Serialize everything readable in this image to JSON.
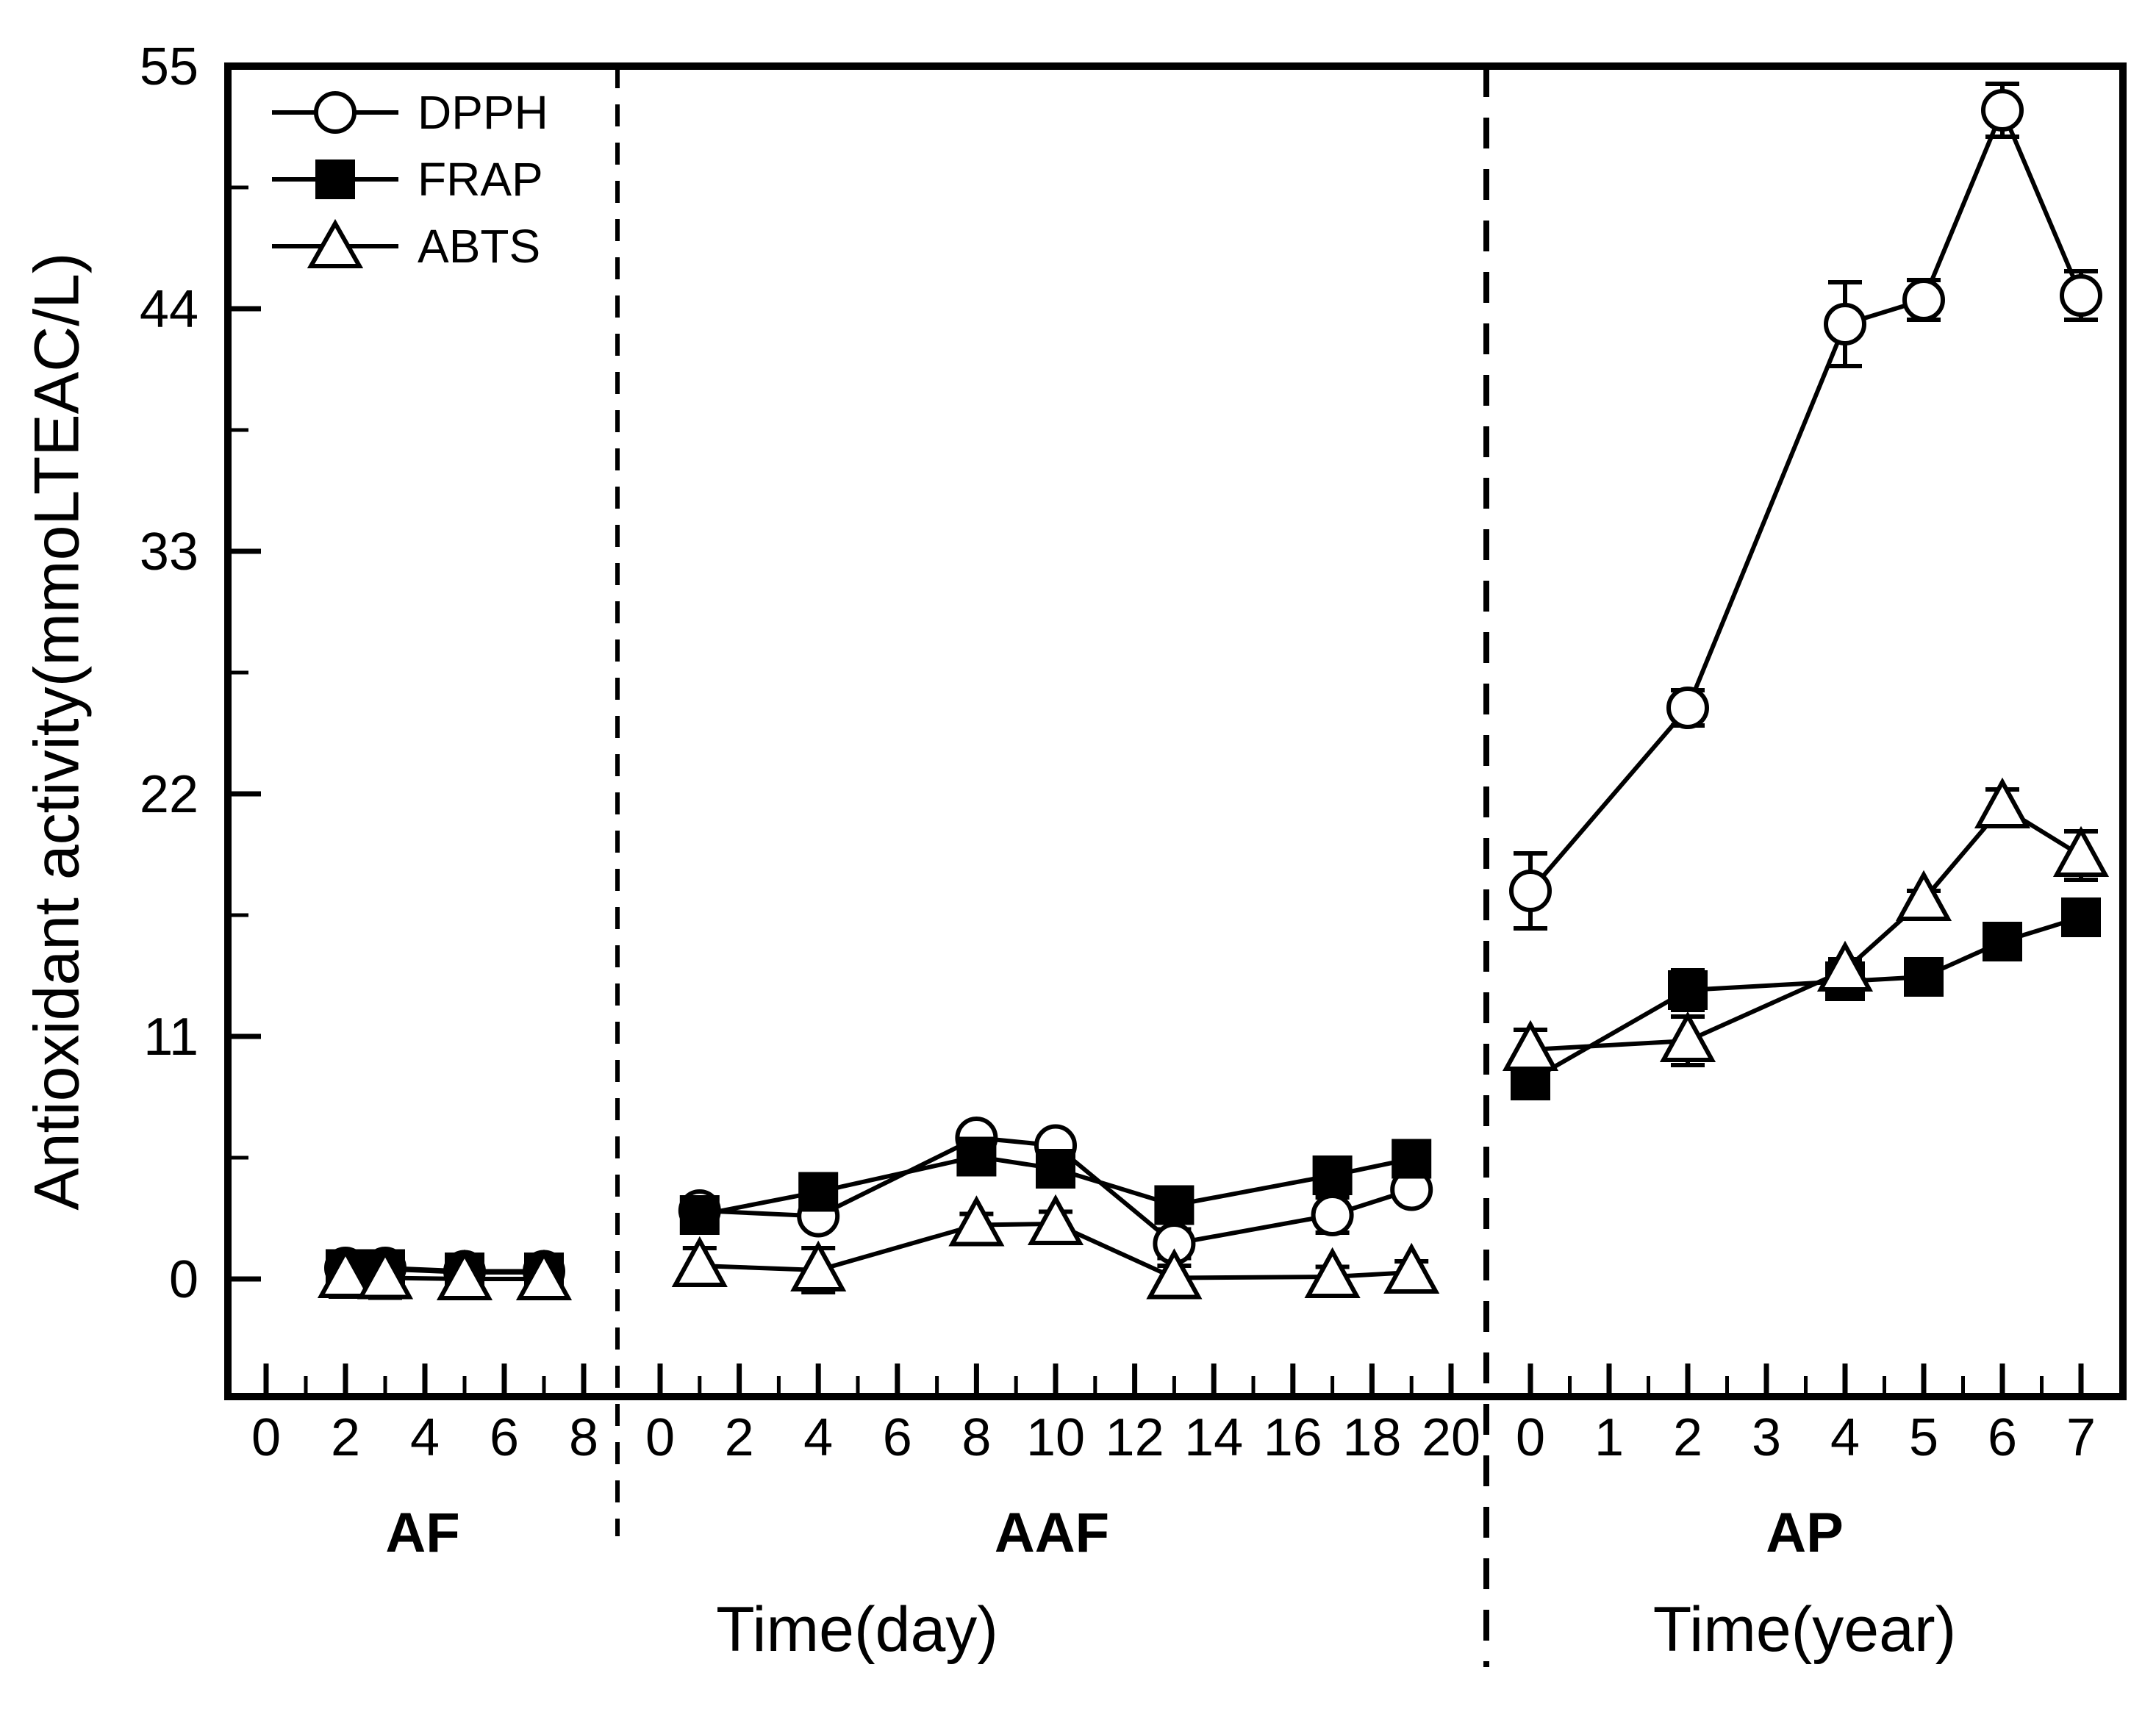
{
  "figure": {
    "y_axis_title": "Antioxidant activity(mmoLTEAC/L)",
    "x_axis_title_day": "Time(day)",
    "x_axis_title_year": "Time(year)",
    "panel_labels": [
      "AF",
      "AAF",
      "AP"
    ],
    "legend": [
      "DPPH",
      "FRAP",
      "ABTS"
    ],
    "colors": {
      "foreground": "#000000",
      "background": "#ffffff"
    }
  },
  "chart_data": {
    "type": "line",
    "title": "",
    "ylabel": "Antioxidant activity(mmoLTEAC/L)",
    "ylim": [
      -5.3,
      55
    ],
    "yticks": [
      0,
      11,
      22,
      33,
      44,
      55
    ],
    "yticks_minor": [
      5.5,
      16.5,
      27.5,
      38.5,
      49.5
    ],
    "grid": "off",
    "legend_position": "top-left-inside",
    "legend_entries": [
      {
        "name": "DPPH",
        "marker": "open-circle"
      },
      {
        "name": "FRAP",
        "marker": "filled-square"
      },
      {
        "name": "ABTS",
        "marker": "open-triangle"
      }
    ],
    "panels": [
      {
        "label": "AF",
        "xlabel": "Time(day)",
        "xlim": [
          -0.96,
          8.85
        ],
        "xticks": [
          0,
          2,
          4,
          6,
          8
        ],
        "xticks_minor": [
          1,
          3,
          5,
          7
        ],
        "x": [
          2,
          3,
          5,
          7
        ],
        "series": [
          {
            "name": "DPPH",
            "marker": "circle",
            "values": [
              0.5,
              0.5,
              0.35,
              0.35
            ],
            "errors": [
              0.2,
              0.2,
              0.2,
              0.2
            ]
          },
          {
            "name": "FRAP",
            "marker": "square",
            "values": [
              0.45,
              0.45,
              0.3,
              0.3
            ],
            "errors": [
              0.15,
              0.15,
              0.15,
              0.15
            ]
          },
          {
            "name": "ABTS",
            "marker": "triangle",
            "values": [
              0.1,
              0.05,
              0.0,
              0.0
            ],
            "errors": [
              0.9,
              0.9,
              0.8,
              0.8
            ]
          }
        ]
      },
      {
        "label": "AAF",
        "xlabel": "Time(day)",
        "xlim": [
          -1.08,
          20.9
        ],
        "xticks": [
          0,
          2,
          4,
          6,
          8,
          10,
          12,
          14,
          16,
          18,
          20
        ],
        "xticks_minor": [
          1,
          3,
          5,
          7,
          9,
          11,
          13,
          15,
          17,
          19
        ],
        "x": [
          1,
          4,
          8,
          10,
          13,
          17,
          19
        ],
        "series": [
          {
            "name": "DPPH",
            "marker": "circle",
            "values": [
              3.1,
              2.85,
              6.4,
              6.05,
              1.6,
              2.9,
              4.05
            ],
            "errors": [
              0.3,
              0.3,
              0.35,
              0.4,
              0.65,
              0.8,
              0.35
            ]
          },
          {
            "name": "FRAP",
            "marker": "square",
            "values": [
              2.9,
              3.95,
              5.55,
              5.0,
              3.35,
              4.7,
              5.45
            ],
            "errors": [
              0.2,
              0.25,
              0.3,
              0.3,
              0.25,
              0.25,
              0.3
            ]
          },
          {
            "name": "ABTS",
            "marker": "triangle",
            "values": [
              0.6,
              0.4,
              2.45,
              2.5,
              0.05,
              0.1,
              0.3
            ],
            "errors": [
              0.8,
              1.0,
              0.5,
              0.55,
              0.55,
              0.45,
              0.5
            ]
          }
        ]
      },
      {
        "label": "AP",
        "xlabel": "Time(year)",
        "xlim": [
          -0.56,
          7.53
        ],
        "xticks": [
          0,
          1,
          2,
          3,
          4,
          5,
          6,
          7
        ],
        "xticks_minor": [
          0.5,
          1.5,
          2.5,
          3.5,
          4.5,
          5.5,
          6.5
        ],
        "x": [
          0,
          2,
          4,
          5,
          6,
          7
        ],
        "series": [
          {
            "name": "DPPH",
            "marker": "circle",
            "values": [
              17.6,
              25.9,
              43.3,
              44.4,
              53.0,
              44.6
            ],
            "errors": [
              1.7,
              0.8,
              1.9,
              0.9,
              1.2,
              1.1
            ]
          },
          {
            "name": "FRAP",
            "marker": "square",
            "values": [
              9.0,
              13.1,
              13.5,
              13.7,
              15.3,
              16.4
            ],
            "errors": [
              0.7,
              0.9,
              0.4,
              0.3,
              0.4,
              0.7
            ]
          },
          {
            "name": "ABTS",
            "marker": "triangle",
            "values": [
              10.4,
              10.8,
              14.0,
              17.2,
              21.4,
              19.2
            ],
            "errors": [
              0.9,
              1.1,
              0.5,
              0.4,
              0.8,
              1.1
            ]
          }
        ]
      }
    ]
  }
}
